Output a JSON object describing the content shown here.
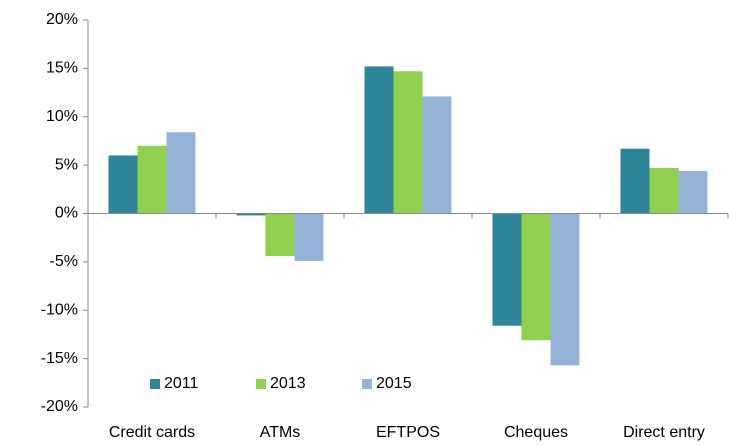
{
  "chart_data": {
    "type": "bar",
    "categories": [
      "Credit cards",
      "ATMs",
      "EFTPOS",
      "Cheques",
      "Direct entry"
    ],
    "series": [
      {
        "name": "2011",
        "color": "#2e8599",
        "values": [
          6.0,
          -0.2,
          15.2,
          -11.6,
          6.7
        ]
      },
      {
        "name": "2013",
        "color": "#8fd14f",
        "values": [
          7.0,
          -4.4,
          14.7,
          -13.1,
          4.7
        ]
      },
      {
        "name": "2015",
        "color": "#95b3d7",
        "values": [
          8.4,
          -4.9,
          12.1,
          -15.7,
          4.4
        ]
      }
    ],
    "ylim": [
      -20,
      20
    ],
    "yticks": [
      {
        "value": -20,
        "label": "-20%"
      },
      {
        "value": -15,
        "label": "-15%"
      },
      {
        "value": -10,
        "label": "-10%"
      },
      {
        "value": -5,
        "label": "-5%"
      },
      {
        "value": 0,
        "label": "0%"
      },
      {
        "value": 5,
        "label": "5%"
      },
      {
        "value": 10,
        "label": "10%"
      },
      {
        "value": 15,
        "label": "15%"
      },
      {
        "value": 20,
        "label": "20%"
      }
    ],
    "grid": false,
    "legend": "lower left"
  }
}
